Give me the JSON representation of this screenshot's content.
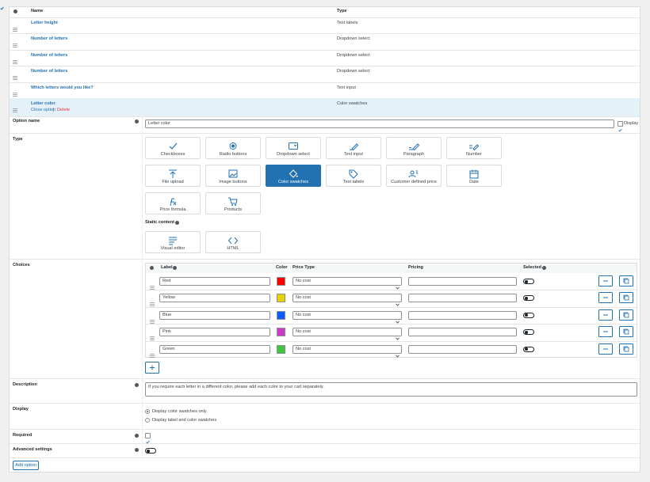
{
  "products_table": {
    "header": {
      "name": "Name",
      "type": "Type"
    },
    "rows": [
      {
        "name": "Letter height",
        "type": "Text labels"
      },
      {
        "name": "Number of letters",
        "type": "Dropdown select"
      },
      {
        "name": "Number of letters",
        "type": "Dropdown select"
      },
      {
        "name": "Number of letters",
        "type": "Dropdown select"
      },
      {
        "name": "Which letters would you like?",
        "type": "Text input"
      },
      {
        "name": "Letter color",
        "type": "Color swatches"
      }
    ],
    "active_row": 5,
    "active_actions": {
      "close": "Close option",
      "separator": "|",
      "delete": "Delete"
    }
  },
  "form": {
    "option_name": {
      "label": "Option name",
      "value": "Letter color",
      "display_label": "Display",
      "display_checked": true
    },
    "type": {
      "label": "Type",
      "tiles": [
        {
          "label": "Checkboxes",
          "selected": false
        },
        {
          "label": "Radio buttons",
          "selected": false
        },
        {
          "label": "Dropdown select",
          "selected": false
        },
        {
          "label": "Text input",
          "selected": false
        },
        {
          "label": "Paragraph",
          "selected": false
        },
        {
          "label": "Number",
          "selected": false
        },
        {
          "label": "File upload",
          "selected": false
        },
        {
          "label": "Image buttons",
          "selected": false
        },
        {
          "label": "Color swatches",
          "selected": true
        },
        {
          "label": "Text labels",
          "selected": false
        },
        {
          "label": "Customer defined price",
          "selected": false
        },
        {
          "label": "Date",
          "selected": false
        },
        {
          "label": "Price formula",
          "selected": false
        },
        {
          "label": "Products",
          "selected": false
        }
      ],
      "static_label": "Static content",
      "static_tiles": [
        {
          "label": "Visual editor",
          "selected": false
        },
        {
          "label": "HTML",
          "selected": false
        }
      ]
    },
    "choices": {
      "label": "Choices",
      "columns": {
        "label": "Label",
        "color": "Color",
        "price_type": "Price Type",
        "pricing": "Pricing",
        "selected": "Selected"
      },
      "rows": [
        {
          "label": "Red",
          "color": "#ff0000",
          "price_type": "No cost",
          "selected": false
        },
        {
          "label": "Yellow",
          "color": "#e8d100",
          "price_type": "No cost",
          "selected": false
        },
        {
          "label": "Blue",
          "color": "#0a5cff",
          "price_type": "No cost",
          "selected": false
        },
        {
          "label": "Pink",
          "color": "#c93cc9",
          "price_type": "No cost",
          "selected": false
        },
        {
          "label": "Green",
          "color": "#3cc83c",
          "price_type": "No cost",
          "selected": false
        }
      ]
    },
    "description": {
      "label": "Description",
      "value": "If you require each letter in a different color, please add each color to your cart separately."
    },
    "display": {
      "label": "Display",
      "options": [
        "Display color swatches only",
        "Display label and color swatches"
      ],
      "checked": 0
    },
    "required": {
      "label": "Required",
      "checked": true
    },
    "advanced": {
      "label": "Advanced settings",
      "enabled": false
    }
  },
  "footer": {
    "add_option": "Add option"
  }
}
